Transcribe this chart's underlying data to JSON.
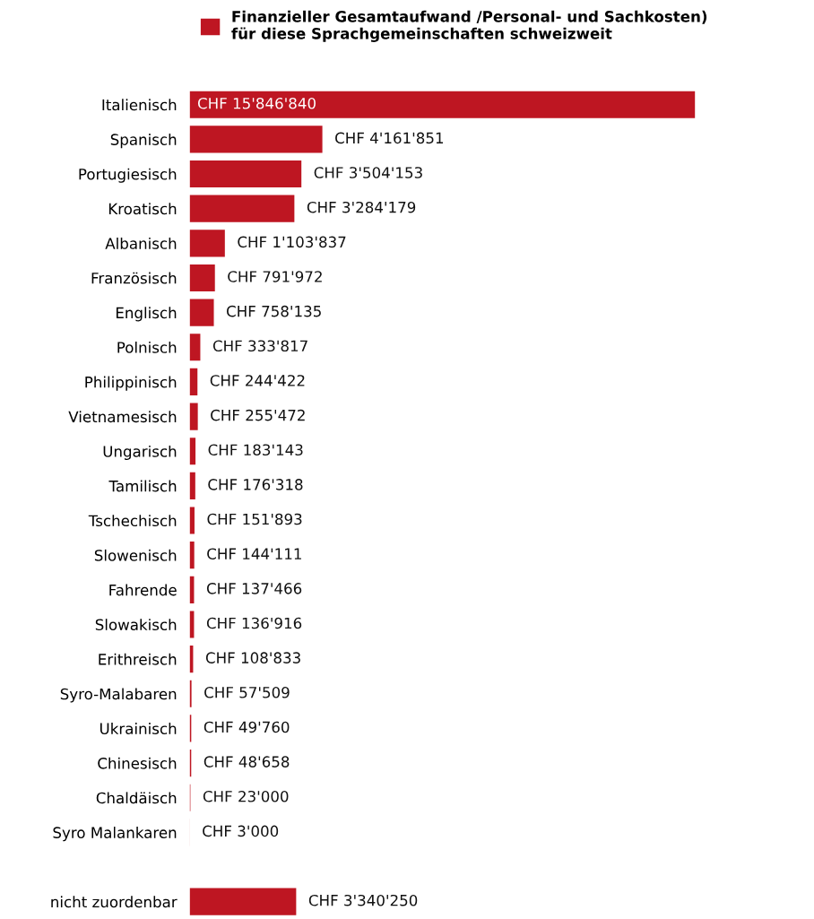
{
  "chart_data": {
    "type": "bar",
    "orientation": "horizontal",
    "legend": "top",
    "categories": [
      "Italienisch",
      "Spanisch",
      "Portugiesisch",
      "Kroatisch",
      "Albanisch",
      "Französisch",
      "Englisch",
      "Polnisch",
      "Philippinisch",
      "Vietnamesisch",
      "Ungarisch",
      "Tamilisch",
      "Tschechisch",
      "Slowenisch",
      "Fahrende",
      "Slowakisch",
      "Erithreisch",
      "Syro-Malabaren",
      "Ukrainisch",
      "Chinesisch",
      "Chaldäisch",
      "Syro Malankaren",
      null,
      "nicht zuordenbar"
    ],
    "series": [
      {
        "name": "Finanzieller Gesamtaufwand /Personal- und Sachkosten)\nfür diese Sprachgemeinschaften schweizweit",
        "color": "#be1622",
        "values": [
          15846840,
          4161851,
          3504153,
          3284179,
          1103837,
          791972,
          758135,
          333817,
          244422,
          255472,
          183143,
          176318,
          151893,
          144111,
          137466,
          136916,
          108833,
          57509,
          49760,
          48658,
          23000,
          3000,
          null,
          3340250
        ],
        "value_labels": [
          "CHF 15'846'840",
          "CHF 4'161'851",
          "CHF 3'504'153",
          "CHF 3'284'179",
          "CHF 1'103'837",
          "CHF 791'972",
          "CHF 758'135",
          "CHF 333'817",
          "CHF 244'422",
          "CHF 255'472",
          "CHF 183'143",
          "CHF 176'318",
          "CHF 151'893",
          "CHF 144'111",
          "CHF 137'466",
          "CHF 136'916",
          "CHF 108'833",
          "CHF 57'509",
          "CHF 49'760",
          "CHF 48'658",
          "CHF 23'000",
          "CHF 3'000",
          null,
          "CHF 3'340'250"
        ]
      }
    ]
  }
}
